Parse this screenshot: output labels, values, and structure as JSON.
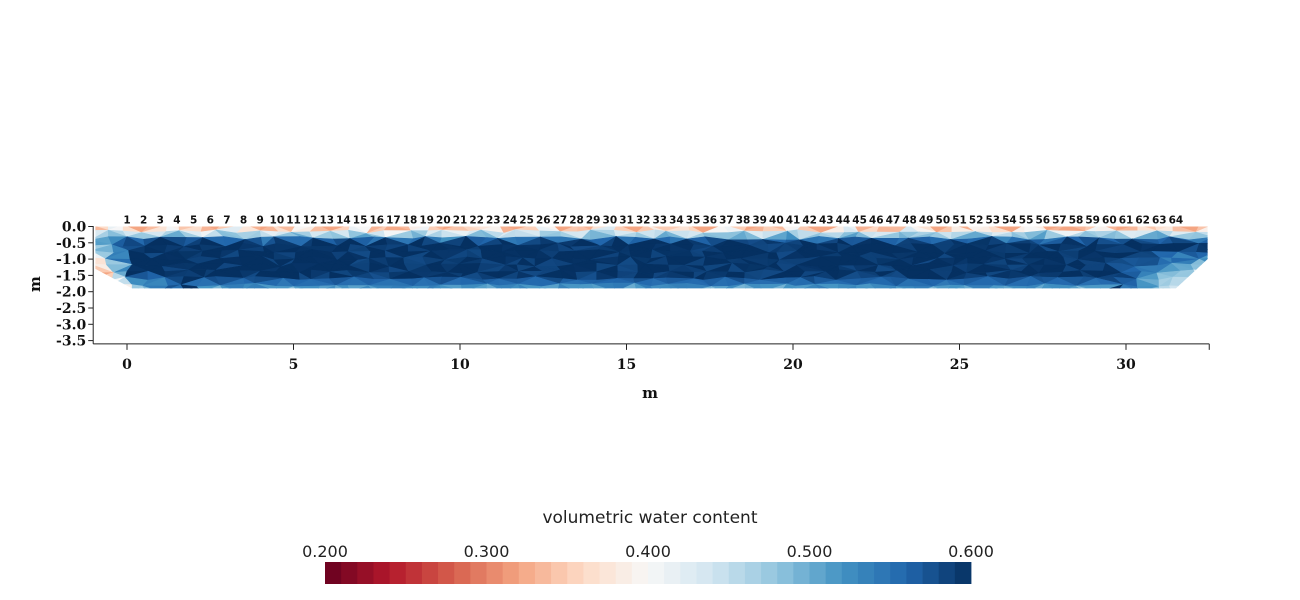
{
  "chart_data": {
    "type": "heatmap",
    "xlabel": "m",
    "ylabel": "m",
    "x_ticks": [
      0,
      5,
      10,
      15,
      20,
      25,
      30
    ],
    "y_ticks": [
      0.0,
      -0.5,
      -1.0,
      -1.5,
      -2.0,
      -2.5,
      -3.0,
      -3.5
    ],
    "y_tick_labels": [
      "0.0",
      "-0.5",
      "-1.0",
      "-1.5",
      "-2.0",
      "-2.5",
      "-3.0",
      "-3.5"
    ],
    "xlim": [
      -1.0,
      32.5
    ],
    "ylim": [
      -3.6,
      0.0
    ],
    "grid": false,
    "electrodes": {
      "labels": [
        "1",
        "2",
        "3",
        "4",
        "5",
        "6",
        "7",
        "8",
        "9",
        "10",
        "11",
        "12",
        "13",
        "14",
        "15",
        "16",
        "17",
        "18",
        "19",
        "20",
        "21",
        "22",
        "23",
        "24",
        "25",
        "26",
        "27",
        "28",
        "29",
        "30",
        "31",
        "32",
        "33",
        "34",
        "35",
        "36",
        "37",
        "38",
        "39",
        "40",
        "41",
        "42",
        "43",
        "44",
        "45",
        "46",
        "47",
        "48",
        "49",
        "50",
        "51",
        "52",
        "53",
        "54",
        "55",
        "56",
        "57",
        "58",
        "59",
        "60",
        "61",
        "62",
        "63",
        "64"
      ],
      "first_x": 0.0,
      "spacing": 0.5
    },
    "model_bottom": -1.9,
    "colorbar": {
      "title": "volumetric water content",
      "min": 0.2,
      "max": 0.6,
      "tick_values": [
        0.2,
        0.3,
        0.4,
        0.5,
        0.6
      ],
      "tick_labels": [
        "0.200",
        "0.300",
        "0.400",
        "0.500",
        "0.600"
      ],
      "colormap": "RdBu",
      "stops": [
        "#67001f",
        "#b2182b",
        "#d6604d",
        "#f4a582",
        "#fddbc7",
        "#f7f7f7",
        "#d1e5f0",
        "#92c5de",
        "#4393c3",
        "#2166ac",
        "#053061"
      ]
    }
  }
}
